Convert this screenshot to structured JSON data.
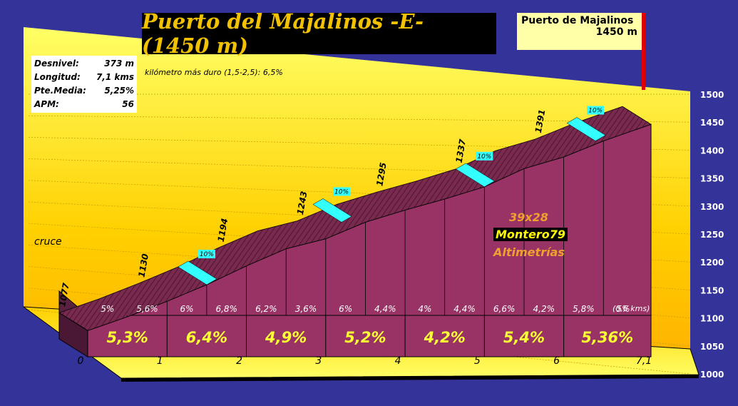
{
  "title": "Puerto del Majalinos -E- (1450 m)",
  "stats": [
    {
      "label": "Desnivel:",
      "value": "373 m"
    },
    {
      "label": "Longitud:",
      "value": "7,1 kms"
    },
    {
      "label": "Pte.Media:",
      "value": "5,25%"
    },
    {
      "label": "APM:",
      "value": "56"
    }
  ],
  "hardest_km": "kilómetro más duro (1,5-2,5): 6,5%",
  "summit": {
    "name": "Puerto de Majalinos",
    "altitude": "1450 m"
  },
  "start_label": "cruce",
  "credits": {
    "gear": "39x28",
    "author": "Montero79",
    "site": "Altimetrías"
  },
  "colors": {
    "background": "#333399",
    "wall_face": "#993366",
    "title_text": "#f2c200",
    "steep_band": "#33ffff",
    "summit_pole": "#e00000"
  },
  "chart_data": {
    "type": "area",
    "x_ticks": [
      "0",
      "1",
      "2",
      "3",
      "4",
      "5",
      "6",
      "7,1"
    ],
    "y_ticks": [
      "1000",
      "1050",
      "1100",
      "1150",
      "1200",
      "1250",
      "1300",
      "1350",
      "1400",
      "1450",
      "1500"
    ],
    "ylim": [
      1000,
      1500
    ],
    "xlim": [
      0,
      7.1
    ],
    "profile": [
      {
        "x": 0,
        "y": 1077
      },
      {
        "x": 0.5,
        "y": 1102
      },
      {
        "x": 1.0,
        "y": 1130
      },
      {
        "x": 1.5,
        "y": 1160
      },
      {
        "x": 2.0,
        "y": 1194
      },
      {
        "x": 2.5,
        "y": 1225
      },
      {
        "x": 3.0,
        "y": 1243
      },
      {
        "x": 3.5,
        "y": 1273
      },
      {
        "x": 4.0,
        "y": 1295
      },
      {
        "x": 4.5,
        "y": 1315
      },
      {
        "x": 5.0,
        "y": 1337
      },
      {
        "x": 5.5,
        "y": 1370
      },
      {
        "x": 6.0,
        "y": 1391
      },
      {
        "x": 6.5,
        "y": 1420
      },
      {
        "x": 7.1,
        "y": 1450
      }
    ],
    "km_altitudes": [
      {
        "x": 0,
        "label": "1077"
      },
      {
        "x": 1,
        "label": "1130"
      },
      {
        "x": 2,
        "label": "1194"
      },
      {
        "x": 3,
        "label": "1243"
      },
      {
        "x": 4,
        "label": "1295"
      },
      {
        "x": 5,
        "label": "1337"
      },
      {
        "x": 6,
        "label": "1391"
      }
    ],
    "half_km_gradients": [
      "5%",
      "5,6%",
      "6%",
      "6,8%",
      "6,2%",
      "3,6%",
      "6%",
      "4,4%",
      "4%",
      "4,4%",
      "6,6%",
      "4,2%",
      "5,8%",
      "5%"
    ],
    "last_segment_note": "(0,6 kms)",
    "km_gradients": [
      "5,3%",
      "6,4%",
      "4,9%",
      "5,2%",
      "4,2%",
      "5,4%",
      "5,36%"
    ],
    "steep_markers": [
      {
        "x": 1.5,
        "label": "10%"
      },
      {
        "x": 3.2,
        "label": "10%"
      },
      {
        "x": 5.0,
        "label": "10%"
      },
      {
        "x": 6.4,
        "label": "10%"
      }
    ]
  }
}
